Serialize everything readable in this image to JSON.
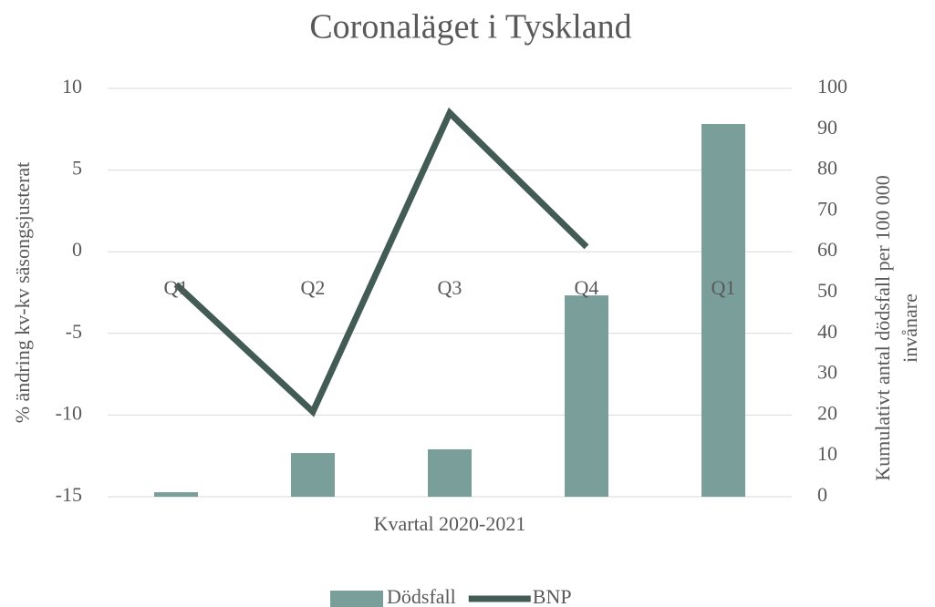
{
  "chart_data": {
    "type": "bar_line",
    "title": "Coronaläget i Tyskland",
    "categories": [
      "Q1",
      "Q2",
      "Q3",
      "Q4",
      "Q1"
    ],
    "series": [
      {
        "name": "Dödsfall",
        "type": "bar",
        "axis": "y2",
        "color": "#7a9e9a",
        "values": [
          1.1,
          10.7,
          11.6,
          49.3,
          91.3
        ]
      },
      {
        "name": "BNP",
        "type": "line",
        "axis": "y",
        "color": "#435b55",
        "values": [
          -2.0,
          -9.8,
          8.5,
          0.3,
          null
        ]
      }
    ],
    "x_label": "Kvartal 2020-2021",
    "y_label": "% ändring kv-kv säsongsjusterat",
    "y2_label": [
      "Kumulativt antal dödsfall per 100 000",
      "invånare"
    ],
    "ylim": [
      -15,
      10
    ],
    "yticks": [
      10,
      5,
      0,
      -5,
      -10,
      -15
    ],
    "y2lim": [
      0,
      100
    ],
    "y2ticks": [
      100,
      90,
      80,
      70,
      60,
      50,
      40,
      30,
      20,
      10,
      0
    ],
    "grid": true,
    "legend": "bottom"
  }
}
